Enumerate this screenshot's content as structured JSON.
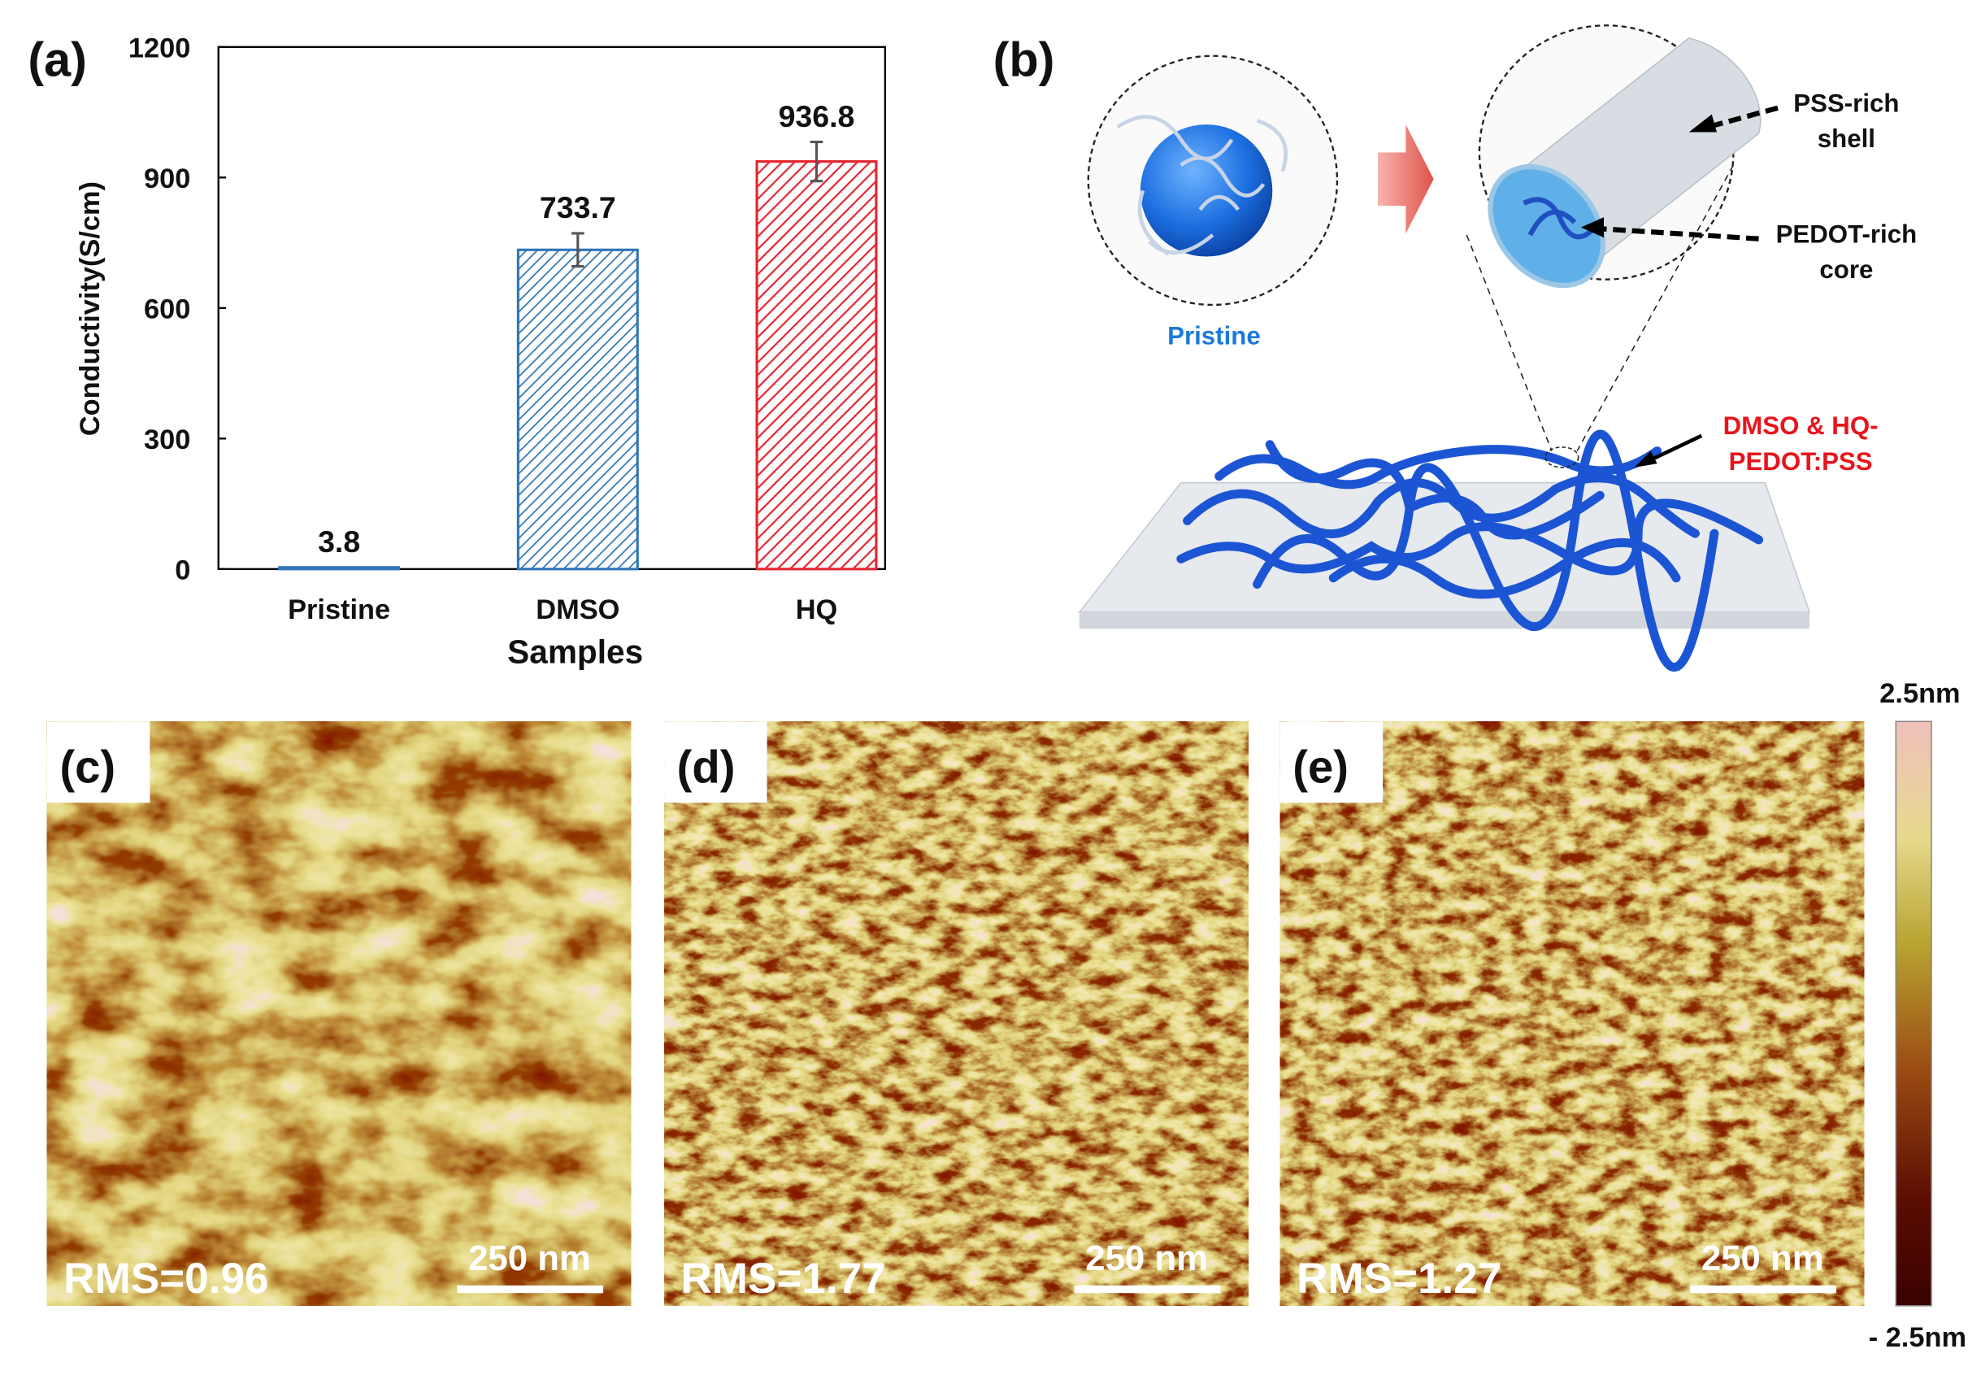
{
  "chart_data": {
    "type": "bar",
    "panel_label": "(a)",
    "categories": [
      "Pristine",
      "DMSO",
      "HQ"
    ],
    "values": [
      3.8,
      733.7,
      936.8
    ],
    "errors": [
      null,
      38,
      45
    ],
    "colors": [
      "#2e75b6",
      "#2e75b6",
      "#e32630"
    ],
    "xlabel": "Samples",
    "ylabel": "Conductivity(S/cm)",
    "ylim": [
      0,
      1200
    ],
    "yticks": [
      0,
      300,
      600,
      900,
      1200
    ]
  },
  "schematic": {
    "panel_label": "(b)",
    "pristine_label": "Pristine",
    "shell_label": [
      "PSS-rich",
      "shell"
    ],
    "core_label": [
      "PEDOT-rich",
      "core"
    ],
    "film_label": [
      "DMSO & HQ-",
      "PEDOT:PSS"
    ]
  },
  "afm": {
    "panels": [
      {
        "label": "(c)",
        "rms": "RMS=0.96",
        "scale": "250 nm"
      },
      {
        "label": "(d)",
        "rms": "RMS=1.77",
        "scale": "250 nm"
      },
      {
        "label": "(e)",
        "rms": "RMS=1.27",
        "scale": "250 nm"
      }
    ],
    "colorbar_max": "2.5nm",
    "colorbar_min": "- 2.5nm"
  }
}
